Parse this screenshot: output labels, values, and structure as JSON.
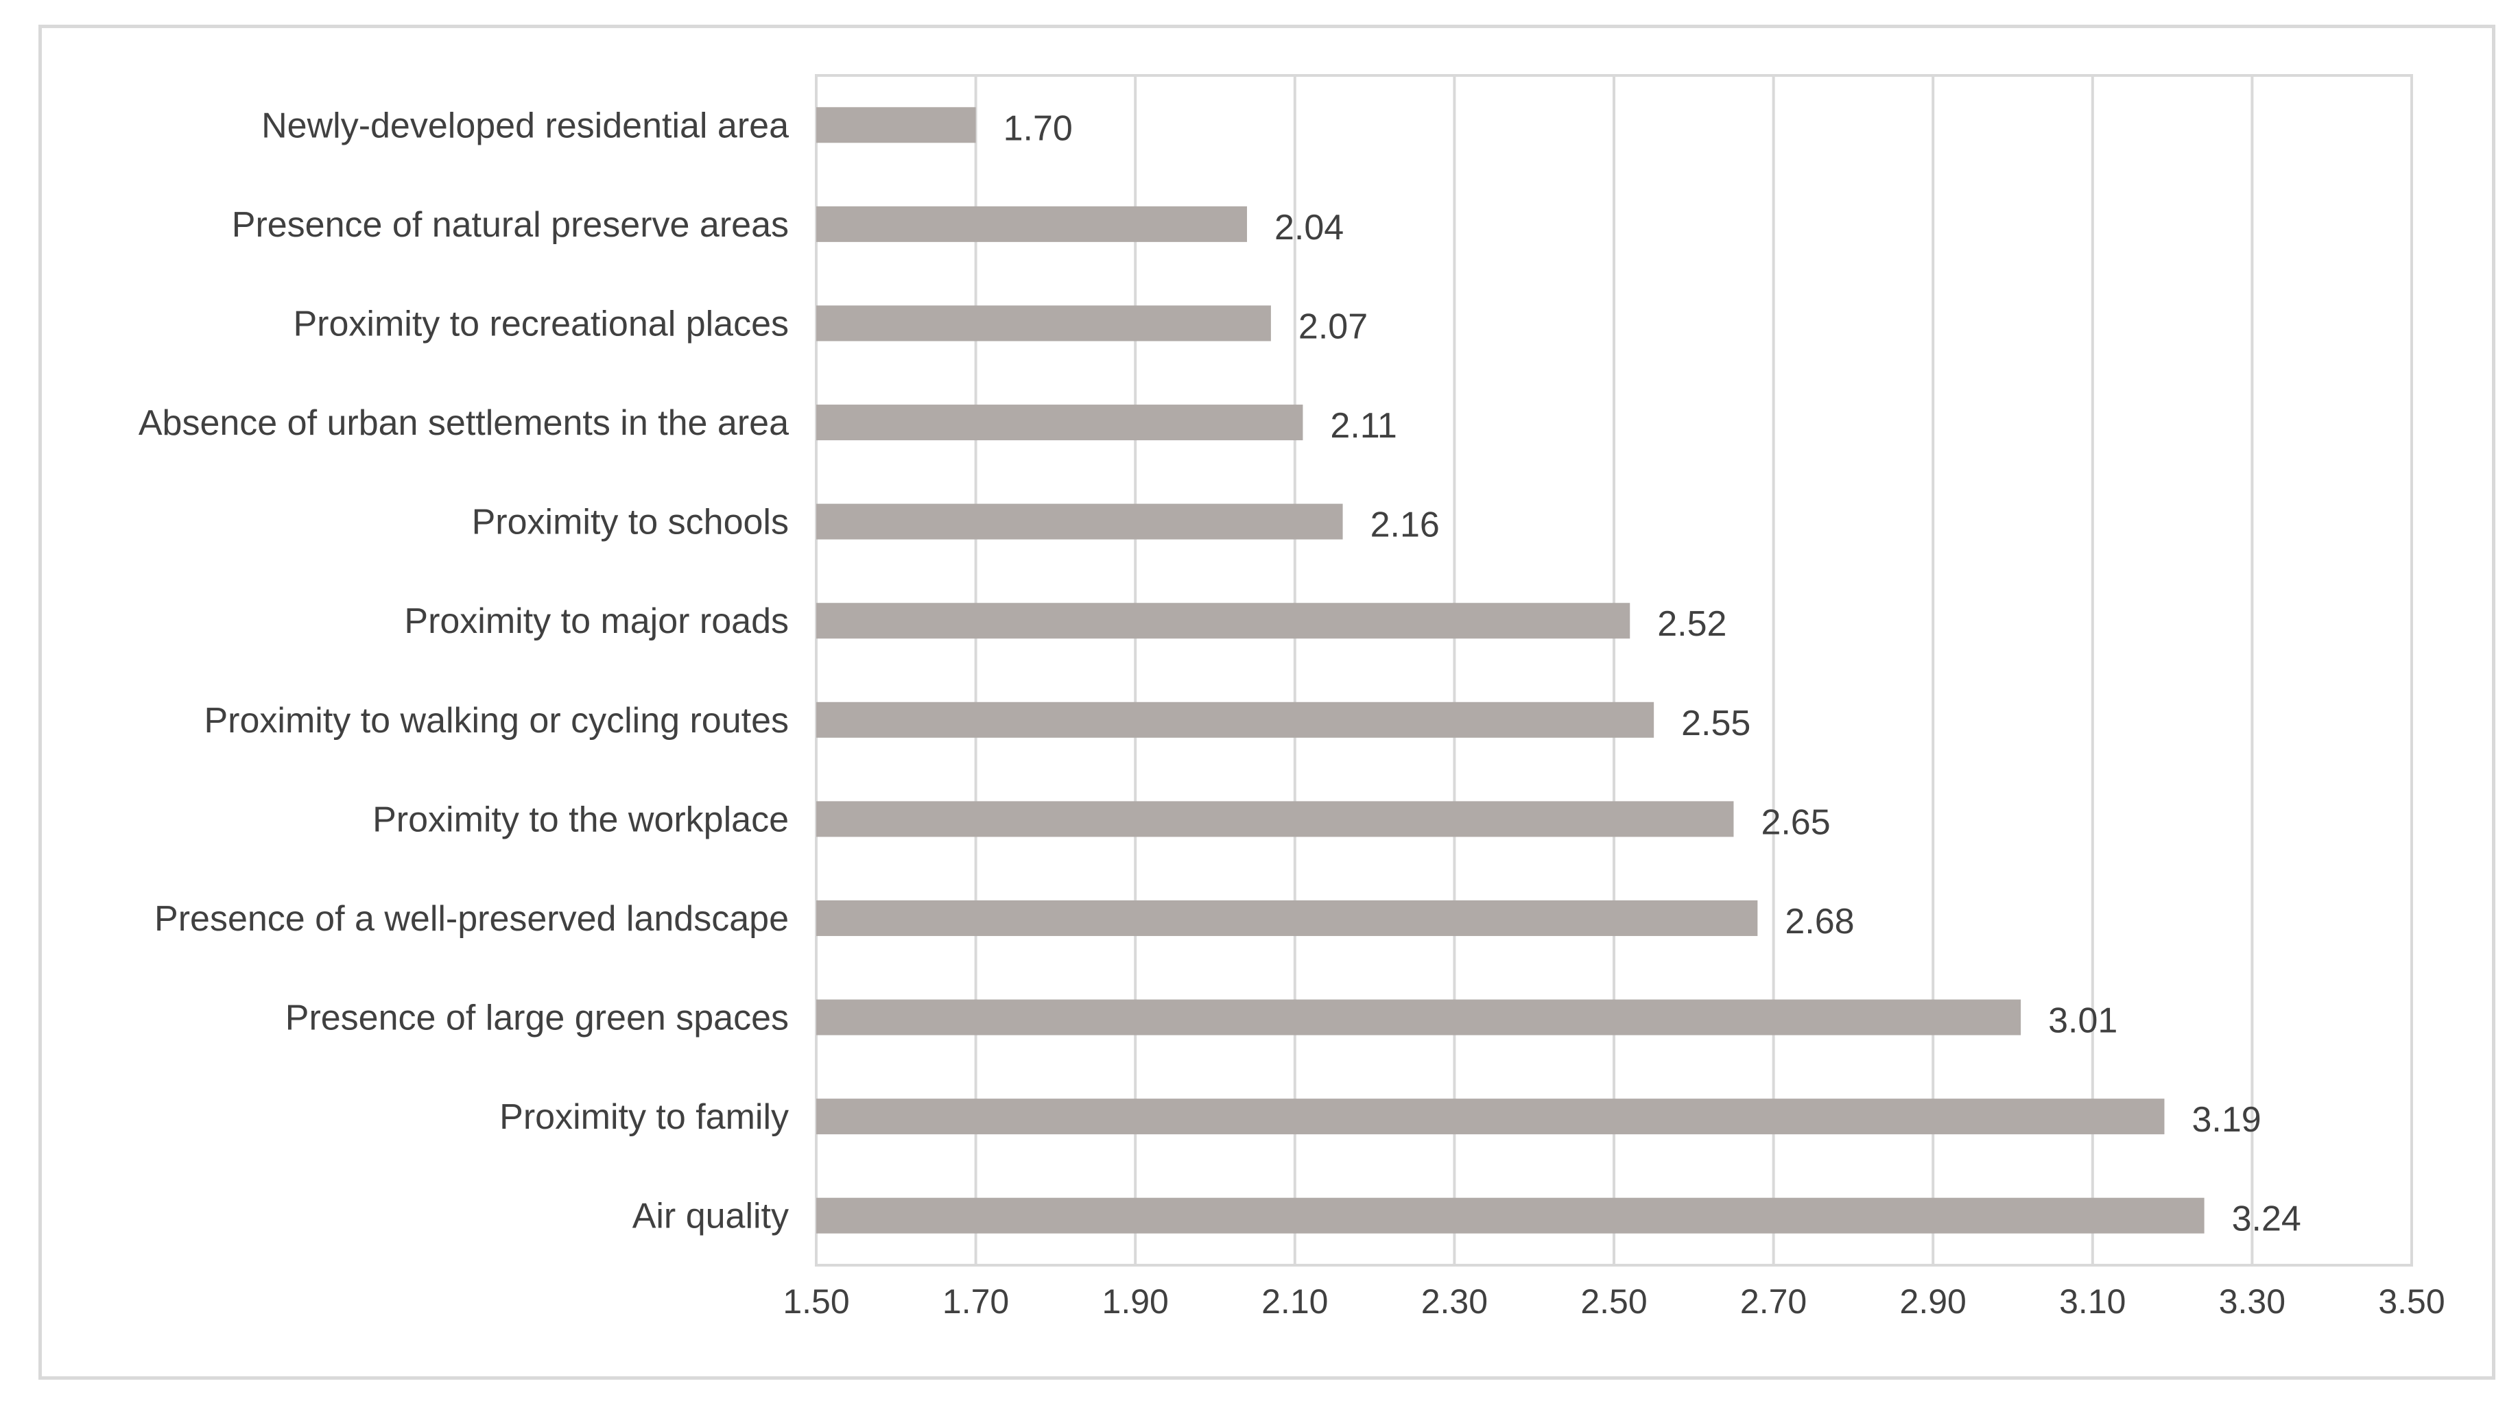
{
  "chart_data": {
    "type": "bar",
    "orientation": "horizontal",
    "categories": [
      "Newly-developed residential area",
      "Presence of natural preserve areas",
      "Proximity to recreational places",
      "Absence of urban settlements in the area",
      "Proximity to schools",
      "Proximity to major roads",
      "Proximity to walking or cycling routes",
      "Proximity to the workplace",
      "Presence of a well-preserved landscape",
      "Presence of large green spaces",
      "Proximity to family",
      "Air quality"
    ],
    "values": [
      1.7,
      2.04,
      2.07,
      2.11,
      2.16,
      2.52,
      2.55,
      2.65,
      2.68,
      3.01,
      3.19,
      3.24
    ],
    "value_labels": [
      "1.70",
      "2.04",
      "2.07",
      "2.11",
      "2.16",
      "2.52",
      "2.55",
      "2.65",
      "2.68",
      "3.01",
      "3.19",
      "3.24"
    ],
    "xlim": [
      1.5,
      3.5
    ],
    "x_ticks": [
      1.5,
      1.7,
      1.9,
      2.1,
      2.3,
      2.5,
      2.7,
      2.9,
      3.1,
      3.3,
      3.5
    ],
    "x_tick_labels": [
      "1.50",
      "1.70",
      "1.90",
      "2.10",
      "2.30",
      "2.50",
      "2.70",
      "2.90",
      "3.10",
      "3.30",
      "3.50"
    ],
    "grid": "vertical",
    "title": "",
    "xlabel": "",
    "ylabel": "",
    "colors": {
      "bar": "#b0aaa7",
      "grid": "#d9d9d9",
      "text": "#404040",
      "frame": "#d9d9d9"
    }
  }
}
